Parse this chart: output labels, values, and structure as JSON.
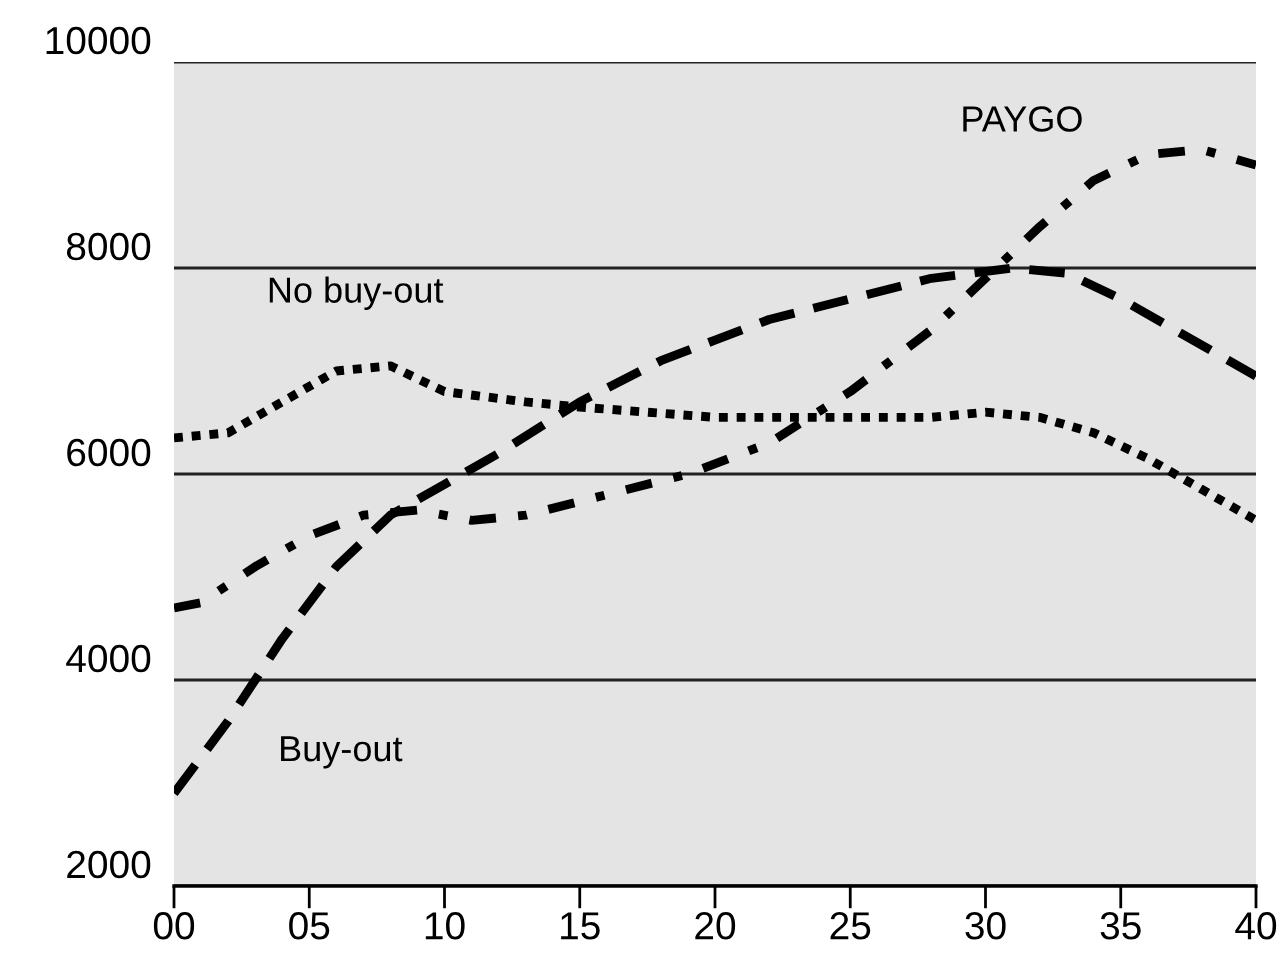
{
  "chart_data": {
    "type": "line",
    "xlim": [
      0,
      40
    ],
    "ylim": [
      2000,
      10000
    ],
    "xticks": [
      {
        "value": 0,
        "label": "00"
      },
      {
        "value": 5,
        "label": "05"
      },
      10,
      15,
      20,
      25,
      30,
      35,
      40
    ],
    "yticks": [
      2000,
      4000,
      6000,
      8000,
      10000
    ],
    "grid": "y",
    "legend": false,
    "marker": "none",
    "series": [
      {
        "name": "Buy-out",
        "color": "#000000",
        "line_style": "dashed",
        "x": [
          0,
          2,
          4,
          6,
          8,
          10,
          12,
          15,
          18,
          20,
          22,
          25,
          28,
          31,
          33,
          35,
          37,
          40
        ],
        "values": [
          2900,
          3600,
          4400,
          5100,
          5600,
          5900,
          6200,
          6700,
          7100,
          7300,
          7500,
          7700,
          7900,
          8000,
          7950,
          7700,
          7400,
          6950
        ]
      },
      {
        "name": "No buy-out",
        "color": "#000000",
        "line_style": "dotted",
        "x": [
          0,
          2,
          4,
          6,
          8,
          10,
          13,
          15,
          20,
          25,
          28,
          30,
          32,
          34,
          36,
          38,
          40
        ],
        "values": [
          6350,
          6400,
          6700,
          7000,
          7050,
          6800,
          6700,
          6650,
          6550,
          6550,
          6550,
          6600,
          6550,
          6400,
          6150,
          5850,
          5550
        ]
      },
      {
        "name": "PAYGO",
        "color": "#000000",
        "line_style": "dashdot",
        "x": [
          0,
          1,
          3,
          5,
          7,
          9,
          11,
          13,
          16,
          19,
          22,
          25,
          28,
          30,
          32,
          34,
          36,
          38,
          40
        ],
        "values": [
          4700,
          4750,
          5100,
          5400,
          5600,
          5650,
          5550,
          5600,
          5800,
          6000,
          6300,
          6800,
          7400,
          7900,
          8400,
          8850,
          9100,
          9150,
          9000
        ]
      }
    ]
  }
}
